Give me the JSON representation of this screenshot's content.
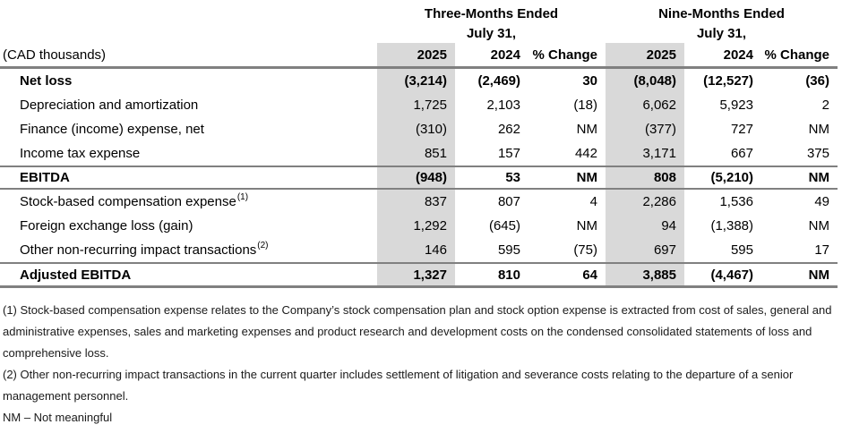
{
  "table": {
    "unit_label": "(CAD thousands)",
    "col_groups": [
      {
        "title": "Three-Months Ended",
        "subtitle": "July 31,"
      },
      {
        "title": "Nine-Months Ended",
        "subtitle": "July 31,"
      }
    ],
    "col_headers": [
      "2025",
      "2024",
      "% Change",
      "2025",
      "2024",
      "% Change"
    ],
    "rows": [
      {
        "label": "Net loss",
        "sup": "",
        "bold": true,
        "type": "item",
        "values": [
          "(3,214)",
          "(2,469)",
          "30",
          "(8,048)",
          "(12,527)",
          "(36)"
        ]
      },
      {
        "label": "Depreciation and amortization",
        "sup": "",
        "bold": false,
        "type": "item",
        "values": [
          "1,725",
          "2,103",
          "(18)",
          "6,062",
          "5,923",
          "2"
        ]
      },
      {
        "label": "Finance (income) expense, net",
        "sup": "",
        "bold": false,
        "type": "item",
        "values": [
          "(310)",
          "262",
          "NM",
          "(377)",
          "727",
          "NM"
        ]
      },
      {
        "label": "Income tax expense",
        "sup": "",
        "bold": false,
        "type": "item",
        "values": [
          "851",
          "157",
          "442",
          "3,171",
          "667",
          "375"
        ]
      },
      {
        "label": "EBITDA",
        "sup": "",
        "bold": true,
        "type": "total",
        "values": [
          "(948)",
          "53",
          "NM",
          "808",
          "(5,210)",
          "NM"
        ]
      },
      {
        "label": "Stock-based compensation expense",
        "sup": "(1)",
        "bold": false,
        "type": "item",
        "values": [
          "837",
          "807",
          "4",
          "2,286",
          "1,536",
          "49"
        ]
      },
      {
        "label": "Foreign exchange loss (gain)",
        "sup": "",
        "bold": false,
        "type": "item",
        "values": [
          "1,292",
          "(645)",
          "NM",
          "94",
          "(1,388)",
          "NM"
        ]
      },
      {
        "label": "Other non-recurring impact transactions",
        "sup": "(2)",
        "bold": false,
        "type": "item",
        "values": [
          "146",
          "595",
          "(75)",
          "697",
          "595",
          "17"
        ]
      },
      {
        "label": "Adjusted EBITDA",
        "sup": "",
        "bold": true,
        "type": "total",
        "values": [
          "1,327",
          "810",
          "64",
          "3,885",
          "(4,467)",
          "NM"
        ]
      }
    ]
  },
  "footnotes": [
    "(1) Stock-based compensation expense relates to the Company’s stock compensation plan and stock option expense is extracted from cost of sales, general and administrative expenses, sales and marketing expenses and product research and development costs on the condensed consolidated statements of loss and comprehensive loss.",
    "(2) Other non-recurring impact transactions in the current quarter includes settlement of litigation and severance costs relating to the departure of a senior management personnel.",
    "NM – Not meaningful"
  ],
  "colors": {
    "shade": "#d9d9d9",
    "rule": "#808080",
    "text": "#000000"
  }
}
